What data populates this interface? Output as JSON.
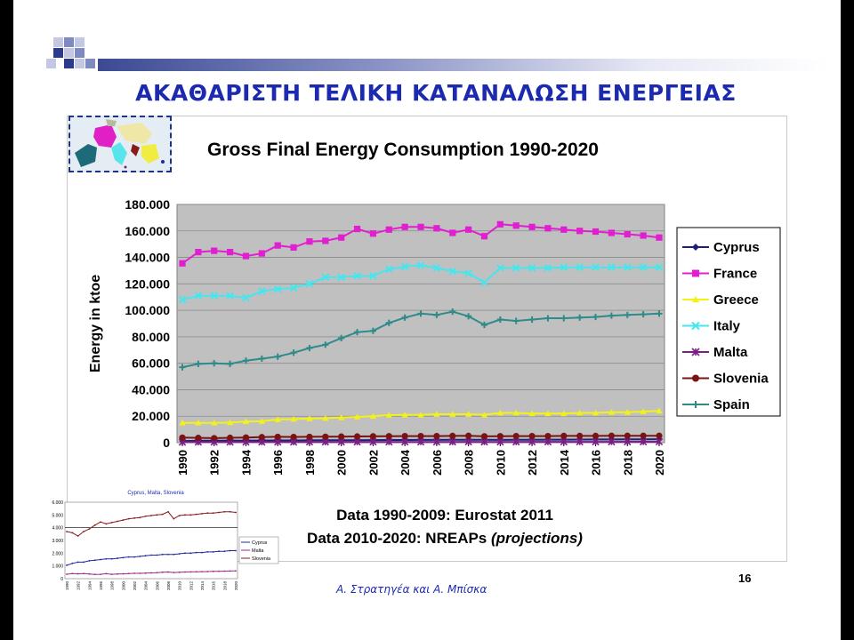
{
  "slide": {
    "title": "ΑΚΑΘΑΡΙΣΤΗ ΤΕΛΙΚΗ ΚΑΤΑΝΑΛΩΣΗ ΕΝΕΡΓΕΙΑΣ",
    "source_line1": "Data 1990-2009: Eurostat 2011",
    "source_line2_prefix": "Data 2010-2020: NREAPs ",
    "source_line2_italic": "(projections)",
    "page_number": "16",
    "footer": "Α. Στρατηγέα και Α. Μπίσκα",
    "accent_color": "#1c2ab0"
  },
  "chart_data": [
    {
      "type": "line",
      "title": "Gross Final Energy Consumption 1990-2020",
      "xlabel": "",
      "ylabel": "Energy in ktoe",
      "x": [
        1990,
        1991,
        1992,
        1993,
        1994,
        1995,
        1996,
        1997,
        1998,
        1999,
        2000,
        2001,
        2002,
        2003,
        2004,
        2005,
        2006,
        2007,
        2008,
        2009,
        2010,
        2011,
        2012,
        2013,
        2014,
        2015,
        2016,
        2017,
        2018,
        2019,
        2020
      ],
      "x_tick_labels": [
        "1990",
        "1992",
        "1994",
        "1996",
        "1998",
        "2000",
        "2002",
        "2004",
        "2006",
        "2008",
        "2010",
        "2012",
        "2014",
        "2016",
        "2018",
        "2020"
      ],
      "y_tick_labels": [
        "0",
        "20.000",
        "40.000",
        "60.000",
        "80.000",
        "100.000",
        "120.000",
        "140.000",
        "160.000",
        "180.000"
      ],
      "ylim": [
        0,
        180000
      ],
      "grid": true,
      "legend_position": "right",
      "plot_background": "#c0c0c0",
      "series": [
        {
          "name": "Cyprus",
          "color": "#1f1f7a",
          "marker": "diamond",
          "values": [
            1300,
            1400,
            1500,
            1500,
            1550,
            1600,
            1650,
            1700,
            1750,
            1800,
            1850,
            1900,
            1950,
            2000,
            2000,
            2050,
            2100,
            2150,
            2200,
            2150,
            2100,
            2150,
            2200,
            2250,
            2300,
            2350,
            2400,
            2450,
            2500,
            2550,
            2600
          ]
        },
        {
          "name": "France",
          "color": "#e020d0",
          "marker": "square",
          "values": [
            135500,
            144000,
            145000,
            144000,
            141000,
            143000,
            149000,
            147500,
            152000,
            152500,
            155000,
            161500,
            158000,
            161000,
            163000,
            163000,
            162000,
            158500,
            161000,
            156000,
            165000,
            164000,
            163000,
            162000,
            161000,
            160000,
            159500,
            158500,
            157500,
            156500,
            155000
          ]
        },
        {
          "name": "Greece",
          "color": "#f2f21a",
          "marker": "triangle",
          "values": [
            15000,
            15000,
            15000,
            15200,
            16000,
            16200,
            17500,
            17800,
            18200,
            18500,
            19000,
            19500,
            20000,
            20800,
            21000,
            21000,
            21500,
            21500,
            21500,
            21000,
            22500,
            22500,
            22000,
            22000,
            22000,
            22500,
            22500,
            23000,
            23000,
            23500,
            24000
          ]
        },
        {
          "name": "Italy",
          "color": "#46e6ee",
          "marker": "x",
          "values": [
            108000,
            111000,
            111000,
            111000,
            109500,
            114500,
            116000,
            117000,
            120000,
            125000,
            125000,
            126000,
            126000,
            131000,
            133000,
            134000,
            132000,
            129500,
            128000,
            121000,
            132000,
            132000,
            132000,
            132000,
            132500,
            132500,
            132500,
            132500,
            132500,
            132500,
            132500
          ]
        },
        {
          "name": "Malta",
          "color": "#7b1f86",
          "marker": "star",
          "values": [
            400,
            420,
            430,
            440,
            450,
            460,
            470,
            480,
            490,
            500,
            500,
            510,
            520,
            530,
            540,
            550,
            560,
            570,
            580,
            570,
            560,
            570,
            580,
            590,
            600,
            610,
            620,
            630,
            640,
            650,
            660
          ]
        },
        {
          "name": "Slovenia",
          "color": "#7a1414",
          "marker": "circle",
          "values": [
            3800,
            3600,
            3400,
            3700,
            3900,
            4200,
            4400,
            4300,
            4400,
            4500,
            4600,
            4700,
            4800,
            4900,
            5000,
            5000,
            5000,
            5100,
            5200,
            4800,
            4900,
            5000,
            5000,
            5000,
            5100,
            5100,
            5100,
            5200,
            5200,
            5200,
            5200
          ]
        },
        {
          "name": "Spain",
          "color": "#2f8a8a",
          "marker": "plus",
          "values": [
            57000,
            59500,
            60000,
            59500,
            62000,
            63500,
            65000,
            68000,
            71500,
            74000,
            79000,
            83500,
            84500,
            90500,
            94500,
            97500,
            96500,
            99000,
            95500,
            89000,
            93000,
            92000,
            93000,
            94000,
            94000,
            94500,
            95000,
            96000,
            96500,
            97000,
            97500
          ]
        }
      ]
    },
    {
      "type": "line",
      "title": "Cyprus, Malta, Slovenia",
      "xlabel": "",
      "ylabel": "",
      "x": [
        1990,
        1991,
        1992,
        1993,
        1994,
        1995,
        1996,
        1997,
        1998,
        1999,
        2000,
        2001,
        2002,
        2003,
        2004,
        2005,
        2006,
        2007,
        2008,
        2009,
        2010,
        2011,
        2012,
        2013,
        2014,
        2015,
        2016,
        2017,
        2018,
        2019,
        2020
      ],
      "x_tick_labels": [
        "1990",
        "1992",
        "1994",
        "1996",
        "1998",
        "2000",
        "2002",
        "2004",
        "2006",
        "2008",
        "2010",
        "2012",
        "2014",
        "2016",
        "2018",
        "2020"
      ],
      "y_tick_labels": [
        "0",
        "1.000",
        "2.000",
        "3.000",
        "4.000",
        "5.000",
        "6.000"
      ],
      "ylim": [
        0,
        6000
      ],
      "grid": false,
      "legend_position": "right",
      "series": [
        {
          "name": "Cyprus",
          "color": "#1f2a9a",
          "values": [
            1050,
            1200,
            1300,
            1300,
            1400,
            1450,
            1500,
            1550,
            1550,
            1600,
            1650,
            1700,
            1700,
            1750,
            1800,
            1850,
            1850,
            1900,
            1900,
            1900,
            1950,
            2000,
            2000,
            2050,
            2050,
            2100,
            2100,
            2150,
            2150,
            2200,
            2200
          ]
        },
        {
          "name": "Malta",
          "color": "#9a2a8a",
          "values": [
            350,
            400,
            380,
            400,
            370,
            330,
            340,
            390,
            340,
            360,
            380,
            400,
            420,
            420,
            430,
            450,
            470,
            500,
            520,
            480,
            500,
            520,
            530,
            540,
            550,
            560,
            570,
            580,
            590,
            600,
            610
          ]
        },
        {
          "name": "Slovenia",
          "color": "#8a1a1a",
          "values": [
            3700,
            3600,
            3350,
            3700,
            3900,
            4200,
            4450,
            4300,
            4400,
            4500,
            4600,
            4700,
            4750,
            4800,
            4900,
            4950,
            5000,
            5050,
            5250,
            4700,
            4950,
            5000,
            5000,
            5050,
            5100,
            5150,
            5150,
            5200,
            5250,
            5250,
            5200
          ]
        }
      ]
    }
  ]
}
